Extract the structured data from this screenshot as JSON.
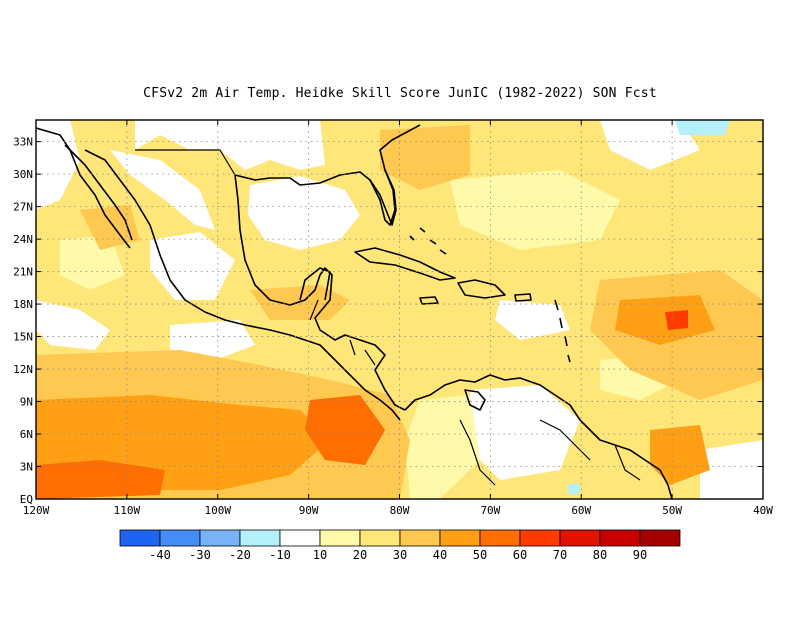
{
  "title": "CFSv2  2m Air Temp. Heidke Skill Score JunIC (1982-2022) SON Fcst",
  "map": {
    "lon_range": [
      -120,
      -40
    ],
    "lat_range": [
      0,
      35
    ],
    "lat_ticks": [
      {
        "value": 0,
        "label": "EQ"
      },
      {
        "value": 3,
        "label": "3N"
      },
      {
        "value": 6,
        "label": "6N"
      },
      {
        "value": 9,
        "label": "9N"
      },
      {
        "value": 12,
        "label": "12N"
      },
      {
        "value": 15,
        "label": "15N"
      },
      {
        "value": 18,
        "label": "18N"
      },
      {
        "value": 21,
        "label": "21N"
      },
      {
        "value": 24,
        "label": "24N"
      },
      {
        "value": 27,
        "label": "27N"
      },
      {
        "value": 30,
        "label": "30N"
      },
      {
        "value": 33,
        "label": "33N"
      }
    ],
    "lon_ticks": [
      {
        "value": -120,
        "label": "120W"
      },
      {
        "value": -110,
        "label": "110W"
      },
      {
        "value": -100,
        "label": "100W"
      },
      {
        "value": -90,
        "label": "90W"
      },
      {
        "value": -80,
        "label": "80W"
      },
      {
        "value": -70,
        "label": "70W"
      },
      {
        "value": -60,
        "label": "60W"
      },
      {
        "value": -50,
        "label": "50W"
      },
      {
        "value": -40,
        "label": "40W"
      }
    ],
    "grid": "dotted"
  },
  "colorbar": {
    "colors": [
      "#1e64f0",
      "#468cf5",
      "#78b4f5",
      "#b4f0fa",
      "#ffffff",
      "#fffaaa",
      "#ffe678",
      "#ffc850",
      "#ffa014",
      "#ff6e00",
      "#ff3c00",
      "#e11400",
      "#c80000",
      "#a50000"
    ],
    "labels": [
      "-40",
      "-30",
      "-20",
      "-10",
      "10",
      "20",
      "30",
      "40",
      "50",
      "60",
      "70",
      "80",
      "90"
    ]
  },
  "colors": {
    "ocean_base": "#ffe678",
    "white": "#ffffff",
    "light": "#fffaaa",
    "mid": "#ffc850",
    "orange": "#ffa014",
    "deep": "#ff6e00",
    "red": "#ff3c00",
    "cyan": "#b4f0fa",
    "coast": "#000000"
  }
}
